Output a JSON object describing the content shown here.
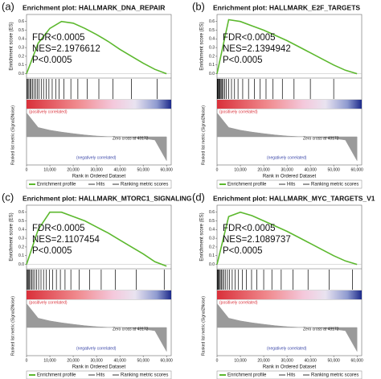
{
  "chart_data": [
    {
      "type": "line",
      "panel": "(a)",
      "title": "Enrichment plot: HALLMARK_DNA_REPAIR",
      "stats": [
        "FDR<0.0005",
        "NES=2.1976612",
        "P<0.0005"
      ],
      "ylabel": "Enrichment score (ES)",
      "ylabel2": "Ranked list metric (Signal2Noise)",
      "xlabel": "Rank in Ordered Dataset",
      "pos_label": "(positively correlated)",
      "neg_label": "(negatively correlated)",
      "zero_cross": "Zero cross at 43172",
      "x": [
        0,
        5000,
        10000,
        15000,
        20000,
        25000,
        30000,
        35000,
        40000,
        45000,
        50000,
        55000,
        60000
      ],
      "series": [
        {
          "name": "Enrichment profile",
          "color": "#5cb82e",
          "values": [
            0,
            0.35,
            0.52,
            0.6,
            0.58,
            0.52,
            0.45,
            0.37,
            0.28,
            0.2,
            0.12,
            0.05,
            0
          ]
        }
      ],
      "hits": {
        "name": "Hits",
        "color": "#000000",
        "x": [
          200,
          600,
          1000,
          1500,
          2000,
          2600,
          3200,
          3900,
          4600,
          5400,
          6300,
          7300,
          8400,
          9600,
          11000,
          12500,
          14000,
          16000,
          19000,
          22000,
          26000,
          31000,
          37000,
          45000,
          56000
        ]
      },
      "ranking": {
        "name": "Ranking metric scores",
        "color": "#9a9a9a",
        "x": [
          0,
          5000,
          10000,
          15000,
          20000,
          25000,
          30000,
          35000,
          40000,
          45000,
          50000,
          55000,
          60000
        ],
        "values": [
          0.9,
          0.35,
          0.25,
          0.18,
          0.12,
          0.07,
          0.03,
          0.01,
          0.005,
          -0.03,
          -0.06,
          -0.12,
          -0.9
        ],
        "ylim": [
          -1,
          1
        ]
      },
      "xlim": [
        0,
        62000
      ],
      "ylim": [
        -0.05,
        0.68
      ],
      "xticks": [
        {
          "value": 0,
          "label": "0"
        },
        {
          "value": 10000,
          "label": "10,000"
        },
        {
          "value": 20000,
          "label": "20,000"
        },
        {
          "value": 30000,
          "label": "30,000"
        },
        {
          "value": 40000,
          "label": "40,000"
        },
        {
          "value": 50000,
          "label": "50,000"
        },
        {
          "value": 60000,
          "label": "60,000"
        }
      ],
      "yticks": [
        {
          "value": 0,
          "label": "0.0"
        },
        {
          "value": 0.1,
          "label": "0.1"
        },
        {
          "value": 0.2,
          "label": "0.2"
        },
        {
          "value": 0.3,
          "label": "0.3"
        },
        {
          "value": 0.4,
          "label": "0.4"
        },
        {
          "value": 0.5,
          "label": "0.5"
        },
        {
          "value": 0.6,
          "label": "0.6"
        }
      ]
    },
    {
      "type": "line",
      "panel": "(b)",
      "title": "Enrichment plot: HALLMARK_E2F_TARGETS",
      "stats": [
        "FDR<0.0005",
        "NES=2.1394942",
        "P<0.0005"
      ],
      "ylabel": "Enrichment score (ES)",
      "ylabel2": "Ranked list metric (Signal2Noise)",
      "xlabel": "Rank in Ordered Dataset",
      "pos_label": "(positively correlated)",
      "neg_label": "(negatively correlated)",
      "zero_cross": "Zero cross at 43172",
      "x": [
        0,
        5000,
        10000,
        15000,
        20000,
        25000,
        30000,
        35000,
        40000,
        45000,
        50000,
        55000,
        60000
      ],
      "series": [
        {
          "name": "Enrichment profile",
          "color": "#5cb82e",
          "values": [
            0,
            0.62,
            0.6,
            0.55,
            0.5,
            0.44,
            0.38,
            0.31,
            0.24,
            0.17,
            0.1,
            0.04,
            0
          ]
        }
      ],
      "hits": {
        "name": "Hits",
        "color": "#000000",
        "x": [
          100,
          300,
          500,
          800,
          1100,
          1400,
          1800,
          2200,
          2700,
          3300,
          4000,
          5000,
          6200,
          7500,
          9000,
          11000,
          13500,
          16000,
          18500,
          21000,
          24000,
          28000,
          33000,
          40000,
          50000
        ]
      },
      "ranking": {
        "name": "Ranking metric scores",
        "color": "#9a9a9a",
        "x": [
          0,
          5000,
          10000,
          15000,
          20000,
          25000,
          30000,
          35000,
          40000,
          45000,
          50000,
          55000,
          60000
        ],
        "values": [
          0.9,
          0.35,
          0.25,
          0.18,
          0.12,
          0.07,
          0.03,
          0.01,
          0.005,
          -0.03,
          -0.06,
          -0.12,
          -0.9
        ],
        "ylim": [
          -1,
          1
        ]
      },
      "xlim": [
        0,
        62000
      ],
      "ylim": [
        -0.05,
        0.68
      ],
      "xticks": [
        {
          "value": 0,
          "label": "0"
        },
        {
          "value": 10000,
          "label": "10,000"
        },
        {
          "value": 20000,
          "label": "20,000"
        },
        {
          "value": 30000,
          "label": "30,000"
        },
        {
          "value": 40000,
          "label": "40,000"
        },
        {
          "value": 50000,
          "label": "50,000"
        },
        {
          "value": 60000,
          "label": "60,000"
        }
      ],
      "yticks": [
        {
          "value": 0,
          "label": "0.0"
        },
        {
          "value": 0.1,
          "label": "0.1"
        },
        {
          "value": 0.2,
          "label": "0.2"
        },
        {
          "value": 0.3,
          "label": "0.3"
        },
        {
          "value": 0.4,
          "label": "0.4"
        },
        {
          "value": 0.5,
          "label": "0.5"
        },
        {
          "value": 0.6,
          "label": "0.6"
        }
      ]
    },
    {
      "type": "line",
      "panel": "(c)",
      "title": "Enrichment plot: HALLMARK_MTORC1_SIGNALING",
      "stats": [
        "FDR<0.0005",
        "NES=2.1107454",
        "P<0.0005"
      ],
      "ylabel": "Enrichment score (ES)",
      "ylabel2": "Ranked list metric (Signal2Noise)",
      "xlabel": "Rank in Ordered Dataset",
      "pos_label": "(positively correlated)",
      "neg_label": "(negatively correlated)",
      "zero_cross": "Zero cross at 43172",
      "x": [
        0,
        5000,
        10000,
        15000,
        20000,
        25000,
        30000,
        35000,
        40000,
        45000,
        50000,
        55000,
        60000
      ],
      "series": [
        {
          "name": "Enrichment profile",
          "color": "#5cb82e",
          "values": [
            0,
            0.4,
            0.6,
            0.6,
            0.55,
            0.5,
            0.43,
            0.36,
            0.28,
            0.2,
            0.12,
            0.03,
            -0.02
          ]
        }
      ],
      "hits": {
        "name": "Hits",
        "color": "#000000",
        "x": [
          150,
          450,
          800,
          1200,
          1700,
          2200,
          2800,
          3500,
          4300,
          5200,
          6200,
          7300,
          8500,
          9800,
          11200,
          12800,
          14500,
          16500,
          19000,
          22500,
          27000,
          32000,
          38000,
          47000,
          59000
        ]
      },
      "ranking": {
        "name": "Ranking metric scores",
        "color": "#9a9a9a",
        "x": [
          0,
          5000,
          10000,
          15000,
          20000,
          25000,
          30000,
          35000,
          40000,
          45000,
          50000,
          55000,
          60000
        ],
        "values": [
          0.9,
          0.35,
          0.25,
          0.18,
          0.12,
          0.07,
          0.03,
          0.01,
          0.005,
          -0.03,
          -0.06,
          -0.12,
          -0.9
        ],
        "ylim": [
          -1,
          1
        ]
      },
      "xlim": [
        0,
        62000
      ],
      "ylim": [
        -0.05,
        0.68
      ],
      "xticks": [
        {
          "value": 0,
          "label": "0"
        },
        {
          "value": 10000,
          "label": "10,000"
        },
        {
          "value": 20000,
          "label": "20,000"
        },
        {
          "value": 30000,
          "label": "30,000"
        },
        {
          "value": 40000,
          "label": "40,000"
        },
        {
          "value": 50000,
          "label": "50,000"
        },
        {
          "value": 60000,
          "label": "60,000"
        }
      ],
      "yticks": [
        {
          "value": 0,
          "label": "0.0"
        },
        {
          "value": 0.1,
          "label": "0.1"
        },
        {
          "value": 0.2,
          "label": "0.2"
        },
        {
          "value": 0.3,
          "label": "0.3"
        },
        {
          "value": 0.4,
          "label": "0.4"
        },
        {
          "value": 0.5,
          "label": "0.5"
        },
        {
          "value": 0.6,
          "label": "0.6"
        }
      ]
    },
    {
      "type": "line",
      "panel": "(d)",
      "title": "Enrichment plot: HALLMARK_MYC_TARGETS_V1",
      "stats": [
        "FDR<0.0005",
        "NES=2.1089737",
        "P<0.0005"
      ],
      "ylabel": "Enrichment score (ES)",
      "ylabel2": "Ranked list metric (Signal2Noise)",
      "xlabel": "Rank in Ordered Dataset",
      "pos_label": "(positively correlated)",
      "neg_label": "(negatively correlated)",
      "zero_cross": "Zero cross at 43172",
      "x": [
        0,
        5000,
        10000,
        15000,
        20000,
        25000,
        30000,
        35000,
        40000,
        45000,
        50000,
        55000,
        60000
      ],
      "series": [
        {
          "name": "Enrichment profile",
          "color": "#5cb82e",
          "values": [
            0,
            0.55,
            0.6,
            0.56,
            0.5,
            0.44,
            0.38,
            0.31,
            0.24,
            0.17,
            0.1,
            0.04,
            0
          ]
        }
      ],
      "hits": {
        "name": "Hits",
        "color": "#000000",
        "x": [
          100,
          350,
          650,
          1000,
          1400,
          1900,
          2400,
          3000,
          3700,
          4500,
          5400,
          6500,
          7800,
          9200,
          10800,
          12600,
          14800,
          17000,
          20000,
          23500,
          27500,
          32500,
          39000,
          48000,
          58000
        ]
      },
      "ranking": {
        "name": "Ranking metric scores",
        "color": "#9a9a9a",
        "x": [
          0,
          5000,
          10000,
          15000,
          20000,
          25000,
          30000,
          35000,
          40000,
          45000,
          50000,
          55000,
          60000
        ],
        "values": [
          0.9,
          0.35,
          0.25,
          0.18,
          0.12,
          0.07,
          0.03,
          0.01,
          0.005,
          -0.03,
          -0.06,
          -0.12,
          -0.9
        ],
        "ylim": [
          -1,
          1
        ]
      },
      "xlim": [
        0,
        62000
      ],
      "ylim": [
        -0.05,
        0.68
      ],
      "xticks": [
        {
          "value": 0,
          "label": "0"
        },
        {
          "value": 10000,
          "label": "10,000"
        },
        {
          "value": 20000,
          "label": "20,000"
        },
        {
          "value": 30000,
          "label": "30,000"
        },
        {
          "value": 40000,
          "label": "40,000"
        },
        {
          "value": 50000,
          "label": "50,000"
        },
        {
          "value": 60000,
          "label": "60,000"
        }
      ],
      "yticks": [
        {
          "value": 0,
          "label": "0.0"
        },
        {
          "value": 0.1,
          "label": "0.1"
        },
        {
          "value": 0.2,
          "label": "0.2"
        },
        {
          "value": 0.3,
          "label": "0.3"
        },
        {
          "value": 0.4,
          "label": "0.4"
        },
        {
          "value": 0.5,
          "label": "0.5"
        },
        {
          "value": 0.6,
          "label": "0.6"
        }
      ]
    }
  ]
}
